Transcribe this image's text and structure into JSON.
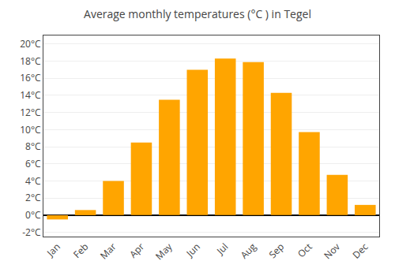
{
  "chart_data": {
    "type": "bar",
    "title": "Average monthly temperatures (°C ) in Tegel",
    "categories": [
      "Jan",
      "Feb",
      "Mar",
      "Apr",
      "May",
      "Jun",
      "Jul",
      "Aug",
      "Sep",
      "Oct",
      "Nov",
      "Dec"
    ],
    "values": [
      -0.5,
      0.6,
      4.0,
      8.5,
      13.5,
      17.0,
      18.3,
      17.9,
      14.3,
      9.7,
      4.7,
      1.2
    ],
    "color": "#FFA500",
    "ylim": [
      -2.5,
      21
    ],
    "yticks": [
      {
        "value": -2,
        "label": "-2°C"
      },
      {
        "value": 0,
        "label": "0°C"
      },
      {
        "value": 2,
        "label": "2°C"
      },
      {
        "value": 4,
        "label": "4°C"
      },
      {
        "value": 6,
        "label": "6°C"
      },
      {
        "value": 8,
        "label": "8°C"
      },
      {
        "value": 10,
        "label": "10°C"
      },
      {
        "value": 12,
        "label": "12°C"
      },
      {
        "value": 14,
        "label": "14°C"
      },
      {
        "value": 16,
        "label": "16°C"
      },
      {
        "value": 18,
        "label": "18°C"
      },
      {
        "value": 20,
        "label": "20°C"
      }
    ],
    "grid": true
  }
}
